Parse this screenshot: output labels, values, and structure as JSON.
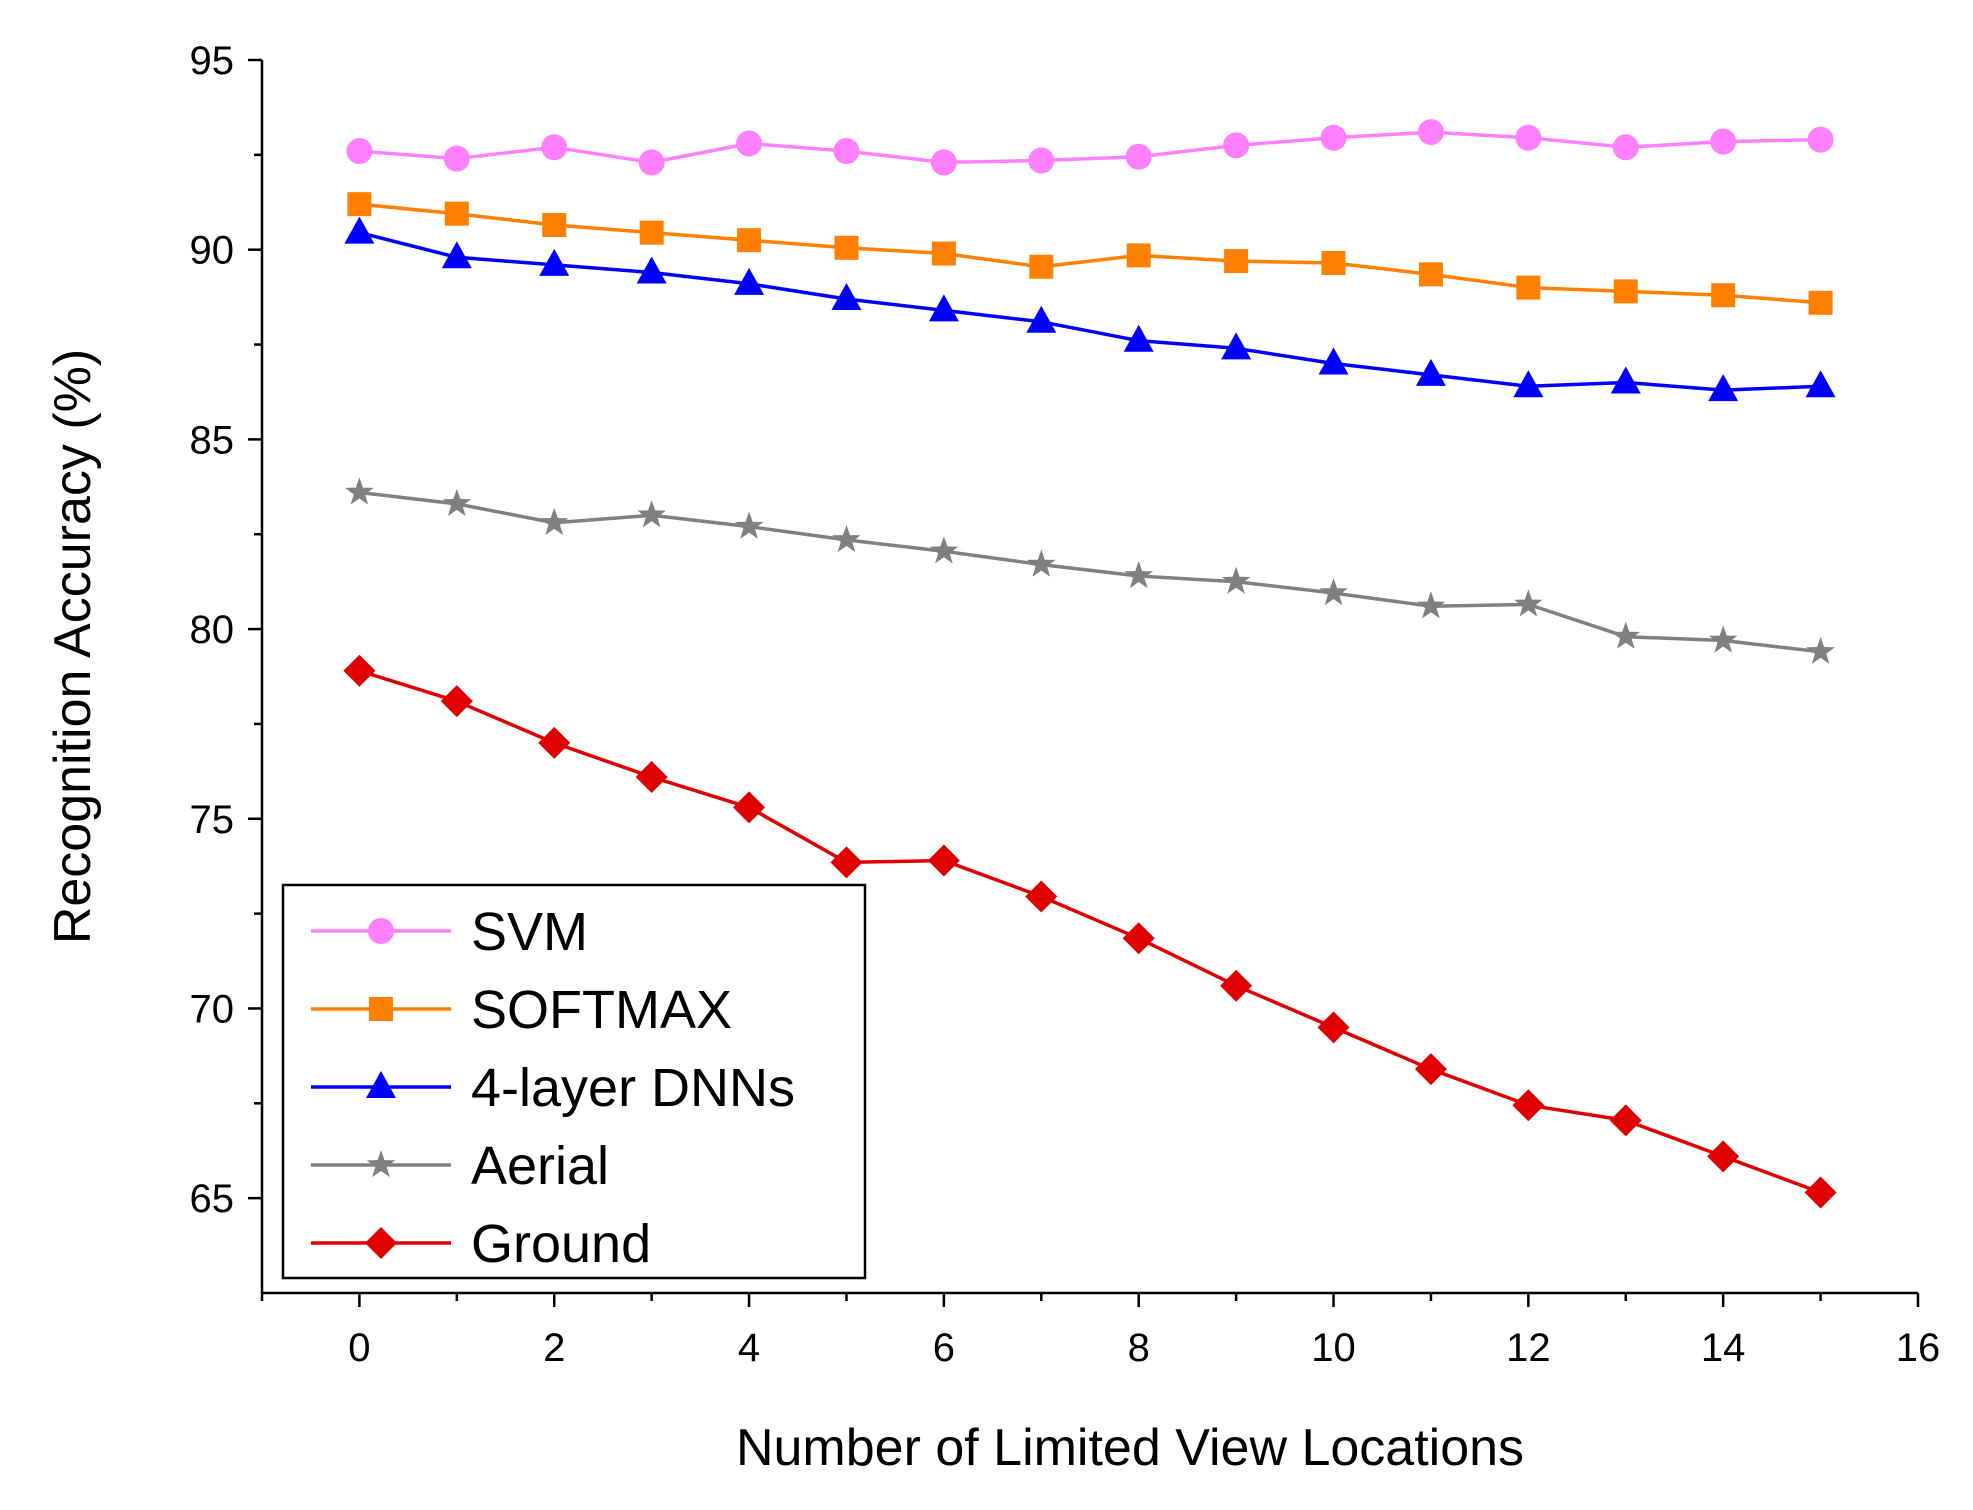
{
  "chart_data": {
    "type": "line",
    "title": "",
    "xlabel": "Number of Limited View Locations",
    "ylabel": "Recognition Accuracy (%)",
    "xlim": [
      -1,
      16
    ],
    "ylim": [
      62.5,
      95
    ],
    "x_ticks": [
      0,
      2,
      4,
      6,
      8,
      10,
      12,
      14,
      16
    ],
    "y_ticks": [
      65,
      70,
      75,
      80,
      85,
      90,
      95
    ],
    "legend_position": "bottom-left",
    "x": [
      0,
      1,
      2,
      3,
      4,
      5,
      6,
      7,
      8,
      9,
      10,
      11,
      12,
      13,
      14,
      15
    ],
    "series": [
      {
        "name": "SVM",
        "color": "#ff80ff",
        "marker": "circle",
        "values": [
          92.6,
          92.4,
          92.7,
          92.3,
          92.8,
          92.6,
          92.3,
          92.35,
          92.45,
          92.75,
          92.95,
          93.1,
          92.95,
          92.7,
          92.85,
          92.9
        ]
      },
      {
        "name": "SOFTMAX",
        "color": "#ff8000",
        "marker": "square",
        "values": [
          91.2,
          90.95,
          90.65,
          90.45,
          90.25,
          90.05,
          89.9,
          89.55,
          89.85,
          89.7,
          89.65,
          89.35,
          89.0,
          88.9,
          88.8,
          88.6
        ]
      },
      {
        "name": "4-layer DNNs",
        "color": "#0000ff",
        "marker": "triangle",
        "values": [
          90.45,
          89.8,
          89.6,
          89.4,
          89.1,
          88.7,
          88.4,
          88.1,
          87.6,
          87.4,
          87.0,
          86.7,
          86.4,
          86.5,
          86.3,
          86.4
        ]
      },
      {
        "name": "Aerial",
        "color": "#808080",
        "marker": "star",
        "values": [
          83.6,
          83.3,
          82.8,
          83.0,
          82.7,
          82.35,
          82.05,
          81.7,
          81.4,
          81.25,
          80.95,
          80.6,
          80.65,
          79.8,
          79.7,
          79.4
        ]
      },
      {
        "name": "Ground",
        "color": "#e00000",
        "marker": "diamond",
        "values": [
          78.9,
          78.1,
          77.0,
          76.1,
          75.3,
          73.85,
          73.9,
          72.95,
          71.85,
          70.6,
          69.5,
          68.4,
          67.45,
          67.05,
          66.1,
          65.15
        ]
      }
    ]
  }
}
